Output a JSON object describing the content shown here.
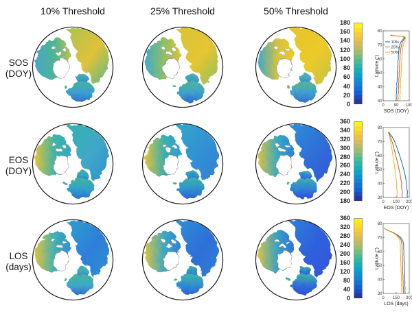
{
  "figure": {
    "columns": [
      "10% Threshold",
      "25% Threshold",
      "50% Threshold"
    ],
    "rows": [
      {
        "label": "SOS\n(DOY)"
      },
      {
        "label": "EOS\n(DOY)"
      },
      {
        "label": "LOS\n(days)"
      }
    ],
    "map_outline_color": "#1a1a1a",
    "greenland_outline_color": "#8d8d8d"
  },
  "colormap": {
    "name": "parula",
    "stops": [
      "#352a87",
      "#0f5cdd",
      "#1481d6",
      "#06a7c6",
      "#38b99e",
      "#92bf73",
      "#d9ba56",
      "#fcce2e",
      "#f9fb0e"
    ]
  },
  "colorbars": [
    {
      "min": 0,
      "max": 180,
      "ticks_top_to_bottom": [
        180,
        160,
        140,
        120,
        100,
        80,
        60,
        40,
        20,
        0
      ]
    },
    {
      "min": 180,
      "max": 360,
      "ticks_top_to_bottom": [
        360,
        340,
        320,
        300,
        280,
        260,
        240,
        220,
        200,
        180
      ]
    },
    {
      "min": 0,
      "max": 360,
      "ticks_top_to_bottom": [
        360,
        320,
        280,
        240,
        200,
        160,
        120,
        80,
        40,
        0
      ]
    }
  ],
  "maps": {
    "description": "Northern-hemisphere polar projection maps of vegetation phenology (SOS, EOS, LOS) at 10/25/50% thresholds, parula colormap, white ocean/ice interior",
    "palettes": [
      [
        {
          "west": [
            "#4aa5c8",
            "#4db792",
            "#b9c14d"
          ],
          "east": [
            "#a9c254",
            "#e0c238",
            "#58b88f"
          ],
          "south": [
            "#45b49a",
            "#3b9fd0",
            "#2f6fd0"
          ]
        },
        {
          "west": [
            "#44aac4",
            "#8fc063",
            "#ddc23a"
          ],
          "east": [
            "#d8c23c",
            "#e6c530",
            "#8fc063"
          ],
          "south": [
            "#4db792",
            "#3fa0cc",
            "#2f6fd0"
          ]
        },
        {
          "west": [
            "#3fa8c8",
            "#d9c23c",
            "#eac92b"
          ],
          "east": [
            "#e6c42f",
            "#ecca28",
            "#c2c24a"
          ],
          "south": [
            "#55b98a",
            "#3f9fd0",
            "#2f6fd0"
          ]
        }
      ],
      [
        {
          "west": [
            "#e0c23c",
            "#3db4a6",
            "#2fa8c8"
          ],
          "east": [
            "#35b2ab",
            "#3fa8c8",
            "#2f8fd0"
          ],
          "south": [
            "#45b49a",
            "#2fa0cc",
            "#2f6fd0"
          ]
        },
        {
          "west": [
            "#ddc23f",
            "#38b0b0",
            "#2f9fd0"
          ],
          "east": [
            "#2fa8c8",
            "#3390d4",
            "#2f7fd4"
          ],
          "south": [
            "#3db4a6",
            "#2f8fd0",
            "#2f5fd4"
          ]
        },
        {
          "west": [
            "#d8c243",
            "#35a8c4",
            "#2f7fd8"
          ],
          "east": [
            "#2f8fd8",
            "#2f6fd8",
            "#3355d8"
          ],
          "south": [
            "#3db4a6",
            "#2f7fd8",
            "#2f4fd8"
          ]
        }
      ],
      [
        {
          "west": [
            "#ddc23c",
            "#3fb0b4",
            "#2f8fd4"
          ],
          "east": [
            "#2f9fd0",
            "#2f7fd8",
            "#2f8fd4"
          ],
          "south": [
            "#45b49a",
            "#3fa8c8",
            "#2f6fd0"
          ]
        },
        {
          "west": [
            "#d8c243",
            "#38a8c4",
            "#2f7fd8"
          ],
          "east": [
            "#2f8fd8",
            "#2f6fd8",
            "#2f7fd8"
          ],
          "south": [
            "#3db4a6",
            "#2f8fd0",
            "#2f5fd8"
          ]
        },
        {
          "west": [
            "#cfc24a",
            "#35a0c8",
            "#2f6fdc"
          ],
          "east": [
            "#2f7fd8",
            "#2f5fdc",
            "#3355dc"
          ],
          "south": [
            "#3db4a6",
            "#2f6fd8",
            "#2f4fdc"
          ]
        }
      ]
    ]
  },
  "chart_data": [
    {
      "type": "line",
      "xlabel": "SOS (DOY)",
      "ylabel": "Latitude (°)",
      "xlim": [
        0,
        180
      ],
      "xticks": [
        0,
        90,
        180
      ],
      "ylim": [
        30,
        80
      ],
      "yticks": [
        30,
        40,
        50,
        60,
        70,
        80
      ],
      "grid": false,
      "legend": {
        "show": true,
        "position": "upper-left",
        "entries": [
          "10%",
          "25%",
          "50%"
        ]
      },
      "lats": [
        30,
        32,
        34,
        36,
        38,
        40,
        42,
        44,
        46,
        48,
        50,
        52,
        54,
        56,
        58,
        60,
        62,
        64,
        66,
        68,
        70,
        72,
        74,
        75,
        76,
        76.5,
        77
      ],
      "series": [
        {
          "name": "10%",
          "color": "#0072BD",
          "values": [
            88,
            91,
            89,
            93,
            91,
            95,
            93,
            97,
            96,
            99,
            97,
            101,
            100,
            103,
            102,
            105,
            104,
            107,
            108,
            111,
            115,
            122,
            138,
            148,
            135,
            70,
            50
          ]
        },
        {
          "name": "25%",
          "color": "#D95319",
          "values": [
            101,
            104,
            102,
            106,
            104,
            108,
            106,
            109,
            108,
            111,
            110,
            113,
            112,
            115,
            114,
            117,
            116,
            119,
            120,
            123,
            127,
            133,
            144,
            152,
            140,
            76,
            56
          ]
        },
        {
          "name": "50%",
          "color": "#EDB120",
          "values": [
            114,
            117,
            115,
            119,
            117,
            121,
            119,
            122,
            121,
            124,
            123,
            126,
            125,
            128,
            127,
            130,
            129,
            132,
            133,
            136,
            140,
            145,
            150,
            156,
            145,
            82,
            62
          ]
        }
      ]
    },
    {
      "type": "line",
      "xlabel": "EOS (DOY)",
      "ylabel": "Latitude (°)",
      "xlim": [
        0,
        200
      ],
      "xticks": [
        0,
        100,
        200
      ],
      "ylim": [
        30,
        80
      ],
      "yticks": [
        30,
        40,
        50,
        60,
        70,
        80
      ],
      "grid": false,
      "legend": {
        "show": false
      },
      "lats": [
        30,
        32,
        34,
        36,
        38,
        40,
        42,
        44,
        46,
        48,
        50,
        52,
        54,
        56,
        58,
        60,
        62,
        64,
        66,
        68,
        70,
        72,
        74,
        75,
        76,
        76.5,
        77
      ],
      "series": [
        {
          "name": "10%",
          "color": "#0072BD",
          "values": [
            186,
            184,
            187,
            182,
            179,
            181,
            176,
            172,
            168,
            163,
            158,
            152,
            146,
            140,
            133,
            126,
            119,
            112,
            104,
            96,
            88,
            78,
            64,
            56,
            48,
            44,
            42
          ]
        },
        {
          "name": "25%",
          "color": "#D95319",
          "values": [
            147,
            145,
            148,
            143,
            141,
            142,
            138,
            134,
            131,
            127,
            122,
            117,
            112,
            107,
            102,
            96,
            91,
            85,
            80,
            74,
            68,
            61,
            53,
            48,
            44,
            41,
            40
          ]
        },
        {
          "name": "50%",
          "color": "#EDB120",
          "values": [
            107,
            106,
            108,
            104,
            103,
            104,
            101,
            98,
            96,
            93,
            90,
            87,
            84,
            81,
            78,
            74,
            71,
            68,
            64,
            61,
            57,
            52,
            47,
            44,
            41,
            39,
            38
          ]
        }
      ]
    },
    {
      "type": "line",
      "xlabel": "LOS (days)",
      "ylabel": "Latitude (°)",
      "xlim": [
        0,
        300
      ],
      "xticks": [
        0,
        150,
        300
      ],
      "ylim": [
        30,
        80
      ],
      "yticks": [
        30,
        40,
        50,
        60,
        70,
        80
      ],
      "grid": false,
      "legend": {
        "show": false
      },
      "lats": [
        30,
        32,
        34,
        36,
        38,
        40,
        42,
        44,
        46,
        48,
        50,
        52,
        54,
        56,
        58,
        60,
        62,
        64,
        66,
        68,
        70,
        72,
        74,
        75,
        76,
        76.5,
        77
      ],
      "series": [
        {
          "name": "10%",
          "color": "#0072BD",
          "values": [
            254,
            250,
            253,
            248,
            251,
            247,
            249,
            245,
            242,
            245,
            241,
            243,
            239,
            241,
            237,
            239,
            235,
            237,
            232,
            226,
            202,
            160,
            100,
            60,
            28,
            18,
            12
          ]
        },
        {
          "name": "25%",
          "color": "#D95319",
          "values": [
            234,
            231,
            233,
            229,
            231,
            228,
            229,
            226,
            223,
            225,
            222,
            223,
            220,
            221,
            218,
            219,
            216,
            217,
            213,
            208,
            190,
            152,
            95,
            56,
            26,
            16,
            10
          ]
        },
        {
          "name": "50%",
          "color": "#EDB120",
          "values": [
            215,
            213,
            214,
            210,
            212,
            209,
            210,
            207,
            205,
            206,
            203,
            204,
            201,
            202,
            199,
            200,
            197,
            198,
            195,
            191,
            178,
            146,
            90,
            53,
            24,
            15,
            9
          ]
        }
      ]
    }
  ]
}
